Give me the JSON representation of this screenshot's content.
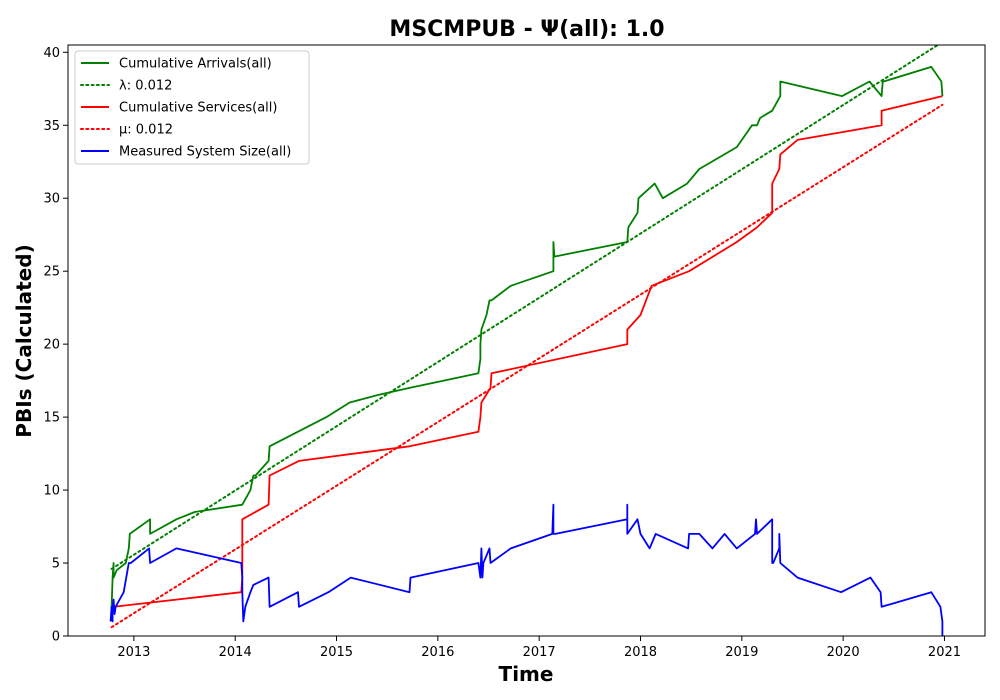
{
  "chart_data": {
    "type": "line",
    "title": "MSCMPUB -  Ψ(all): 1.0",
    "xlabel": "Time",
    "ylabel": "PBIs (Calculated)",
    "xlim": [
      2012.35,
      2021.4
    ],
    "ylim": [
      0,
      40.5
    ],
    "x_ticks": [
      2013,
      2014,
      2015,
      2016,
      2017,
      2018,
      2019,
      2020,
      2021
    ],
    "x_tick_labels": [
      "2013",
      "2014",
      "2015",
      "2016",
      "2017",
      "2018",
      "2019",
      "2020",
      "2021"
    ],
    "y_ticks": [
      0,
      5,
      10,
      15,
      20,
      25,
      30,
      35,
      40
    ],
    "y_tick_labels": [
      "0",
      "5",
      "10",
      "15",
      "20",
      "25",
      "30",
      "35",
      "40"
    ],
    "grid": false,
    "legend_position": "top-left",
    "series": [
      {
        "name": "Cumulative Arrivals(all)",
        "style": "solid",
        "color": "#008000",
        "x": [
          2012.78,
          2012.78,
          2012.79,
          2012.8,
          2012.8,
          2012.83,
          2012.92,
          2012.95,
          2012.96,
          2013.16,
          2013.16,
          2013.42,
          2013.6,
          2014.07,
          2014.15,
          2014.18,
          2014.2,
          2014.33,
          2014.34,
          2014.9,
          2015.13,
          2015.4,
          2015.72,
          2016.4,
          2016.42,
          2016.42,
          2016.43,
          2016.48,
          2016.51,
          2016.53,
          2016.72,
          2017.14,
          2017.14,
          2017.15,
          2017.15,
          2017.87,
          2017.87,
          2017.88,
          2017.97,
          2017.98,
          2018.14,
          2018.22,
          2018.46,
          2018.58,
          2018.95,
          2019.1,
          2019.15,
          2019.18,
          2019.3,
          2019.38,
          2019.38,
          2019.99,
          2020.26,
          2020.38,
          2020.39,
          2020.4,
          2020.87,
          2020.97,
          2020.98
        ],
        "values": [
          1,
          2,
          4,
          5,
          4,
          4.5,
          5,
          6,
          7,
          8,
          7,
          8,
          8.5,
          9,
          10,
          11,
          11,
          12,
          13,
          15,
          16,
          16.5,
          17,
          18,
          19,
          20,
          21,
          22,
          23,
          23,
          24,
          25,
          27,
          26,
          26,
          27,
          27,
          28,
          29,
          30,
          31,
          30,
          31,
          32,
          33.5,
          35,
          35,
          35.5,
          36,
          37,
          38,
          37,
          38,
          37,
          38,
          38,
          39,
          38,
          37
        ]
      },
      {
        "name": "λ: 0.012",
        "style": "dotted",
        "color": "#008000",
        "x": [
          2012.78,
          2020.98
        ],
        "values": [
          4.6,
          40.7
        ]
      },
      {
        "name": "Cumulative Services(all)",
        "style": "solid",
        "color": "#ff0000",
        "x": [
          2012.78,
          2012.8,
          2014.06,
          2014.07,
          2014.07,
          2014.33,
          2014.34,
          2014.63,
          2015.72,
          2016.4,
          2016.42,
          2016.43,
          2016.52,
          2016.53,
          2017.87,
          2017.87,
          2018.0,
          2018.11,
          2018.48,
          2018.95,
          2019.15,
          2019.3,
          2019.3,
          2019.37,
          2019.38,
          2019.55,
          2020.38,
          2020.38,
          2020.98,
          2020.98
        ],
        "values": [
          2,
          2,
          3,
          4,
          8,
          9,
          11,
          12,
          13,
          14,
          15,
          16,
          17,
          18,
          20,
          21,
          22,
          24,
          25,
          27,
          28,
          29,
          31,
          32,
          33,
          34,
          35,
          36,
          37,
          37
        ]
      },
      {
        "name": "μ: 0.012",
        "style": "dotted",
        "color": "#ff0000",
        "x": [
          2012.78,
          2020.98
        ],
        "values": [
          0.6,
          36.4
        ]
      },
      {
        "name": "Measured System Size(all)",
        "style": "solid",
        "color": "#0000ff",
        "x": [
          2012.77,
          2012.78,
          2012.79,
          2012.79,
          2012.8,
          2012.81,
          2012.82,
          2012.9,
          2012.95,
          2012.97,
          2013.15,
          2013.16,
          2013.42,
          2014.06,
          2014.07,
          2014.07,
          2014.08,
          2014.1,
          2014.15,
          2014.18,
          2014.33,
          2014.34,
          2014.62,
          2014.63,
          2014.92,
          2015.14,
          2015.72,
          2015.73,
          2016.4,
          2016.42,
          2016.43,
          2016.44,
          2016.45,
          2016.51,
          2016.52,
          2016.72,
          2017.13,
          2017.14,
          2017.14,
          2017.16,
          2017.87,
          2017.87,
          2017.87,
          2017.97,
          2018.0,
          2018.09,
          2018.15,
          2018.47,
          2018.48,
          2018.58,
          2018.71,
          2018.83,
          2018.95,
          2019.13,
          2019.14,
          2019.15,
          2019.3,
          2019.3,
          2019.31,
          2019.37,
          2019.37,
          2019.38,
          2019.55,
          2019.98,
          2020.27,
          2020.37,
          2020.38,
          2020.38,
          2020.87,
          2020.96,
          2020.98,
          2020.98
        ],
        "values": [
          1,
          2,
          1,
          2,
          2.5,
          1.5,
          2,
          3,
          5,
          5,
          6,
          5,
          6,
          5,
          4,
          3,
          1,
          2,
          3,
          3.5,
          4,
          2,
          3,
          2,
          3,
          4,
          3,
          4,
          5,
          4,
          6,
          4,
          5,
          6,
          5,
          6,
          7,
          9,
          7,
          7,
          8,
          9,
          7,
          8,
          7,
          6,
          7,
          6,
          7,
          7,
          6,
          7,
          6,
          7,
          8,
          7,
          8,
          5,
          5,
          6,
          7,
          5,
          4,
          3,
          4,
          3,
          2,
          2,
          3,
          2,
          1,
          0
        ]
      }
    ]
  },
  "style": {
    "background": "#ffffff",
    "axis_color": "#000000"
  }
}
